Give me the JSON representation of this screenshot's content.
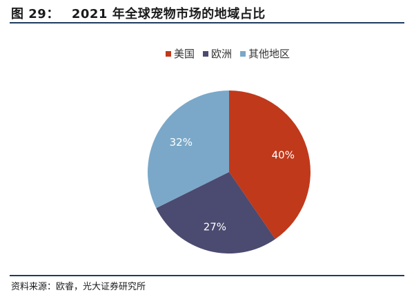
{
  "figure": {
    "number": "图 29：",
    "title": "2021 年全球宠物市场的地域占比"
  },
  "source": "资料来源：欧睿，光大证券研究所",
  "chart_data": {
    "type": "pie",
    "title": "",
    "start_angle_deg": 0,
    "direction": "clockwise",
    "legend_position": "top-right",
    "slices": [
      {
        "label": "美国",
        "value": 40,
        "value_label": "40%",
        "color": "#c0391b",
        "label_color": "#ffffff"
      },
      {
        "label": "欧洲",
        "value": 27,
        "value_label": "27%",
        "color": "#4b4a70",
        "label_color": "#ffffff"
      },
      {
        "label": "其他地区",
        "value": 32,
        "value_label": "32%",
        "color": "#7ba8c8",
        "label_color": "#ffffff"
      }
    ]
  }
}
